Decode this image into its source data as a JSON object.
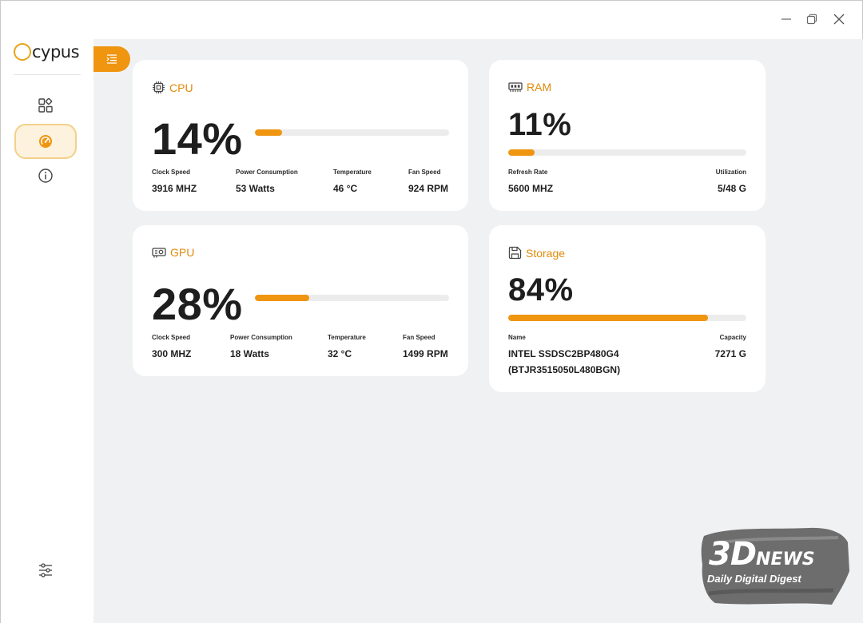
{
  "app": {
    "logo_text": "cypus"
  },
  "window": {
    "minimize_icon": "minimize-icon",
    "maximize_icon": "restore-icon",
    "close_icon": "close-icon"
  },
  "sidebar": {
    "items": [
      {
        "name": "dashboard",
        "icon": "grid-icon"
      },
      {
        "name": "performance",
        "icon": "gauge-icon",
        "active": true
      },
      {
        "name": "info",
        "icon": "info-icon"
      }
    ],
    "settings_icon": "sliders-icon"
  },
  "colors": {
    "accent": "#ef9510",
    "background": "#f0f1f3",
    "card": "#ffffff"
  },
  "cards": {
    "cpu": {
      "title": "CPU",
      "value": "14%",
      "usage": 14,
      "stats": [
        {
          "label": "Clock Speed",
          "value": "3916 MHZ"
        },
        {
          "label": "Power Consumption",
          "value": "53 Watts"
        },
        {
          "label": "Temperature",
          "value": "46 °C"
        },
        {
          "label": "Fan Speed",
          "value": "924 RPM"
        }
      ]
    },
    "ram": {
      "title": "RAM",
      "value": "11%",
      "usage": 11,
      "stats": [
        {
          "label": "Refresh Rate",
          "value": "5600 MHZ"
        },
        {
          "label": "Utilization",
          "value": "5/48 G"
        }
      ]
    },
    "gpu": {
      "title": "GPU",
      "value": "28%",
      "usage": 28,
      "stats": [
        {
          "label": "Clock Speed",
          "value": "300 MHZ"
        },
        {
          "label": "Power Consumption",
          "value": "18 Watts"
        },
        {
          "label": "Temperature",
          "value": "32 °C"
        },
        {
          "label": "Fan Speed",
          "value": "1499 RPM"
        }
      ]
    },
    "storage": {
      "title": "Storage",
      "value": "84%",
      "usage": 84,
      "stats": [
        {
          "label": "Name",
          "value_line1": "INTEL SSDSC2BP480G4",
          "value_line2": "(BTJR3515050L480BGN)"
        },
        {
          "label": "Capacity",
          "value": "7271 G"
        }
      ]
    }
  },
  "watermark": {
    "title": "3D",
    "title_suffix": "NEWS",
    "subtitle": "Daily Digital Digest"
  }
}
